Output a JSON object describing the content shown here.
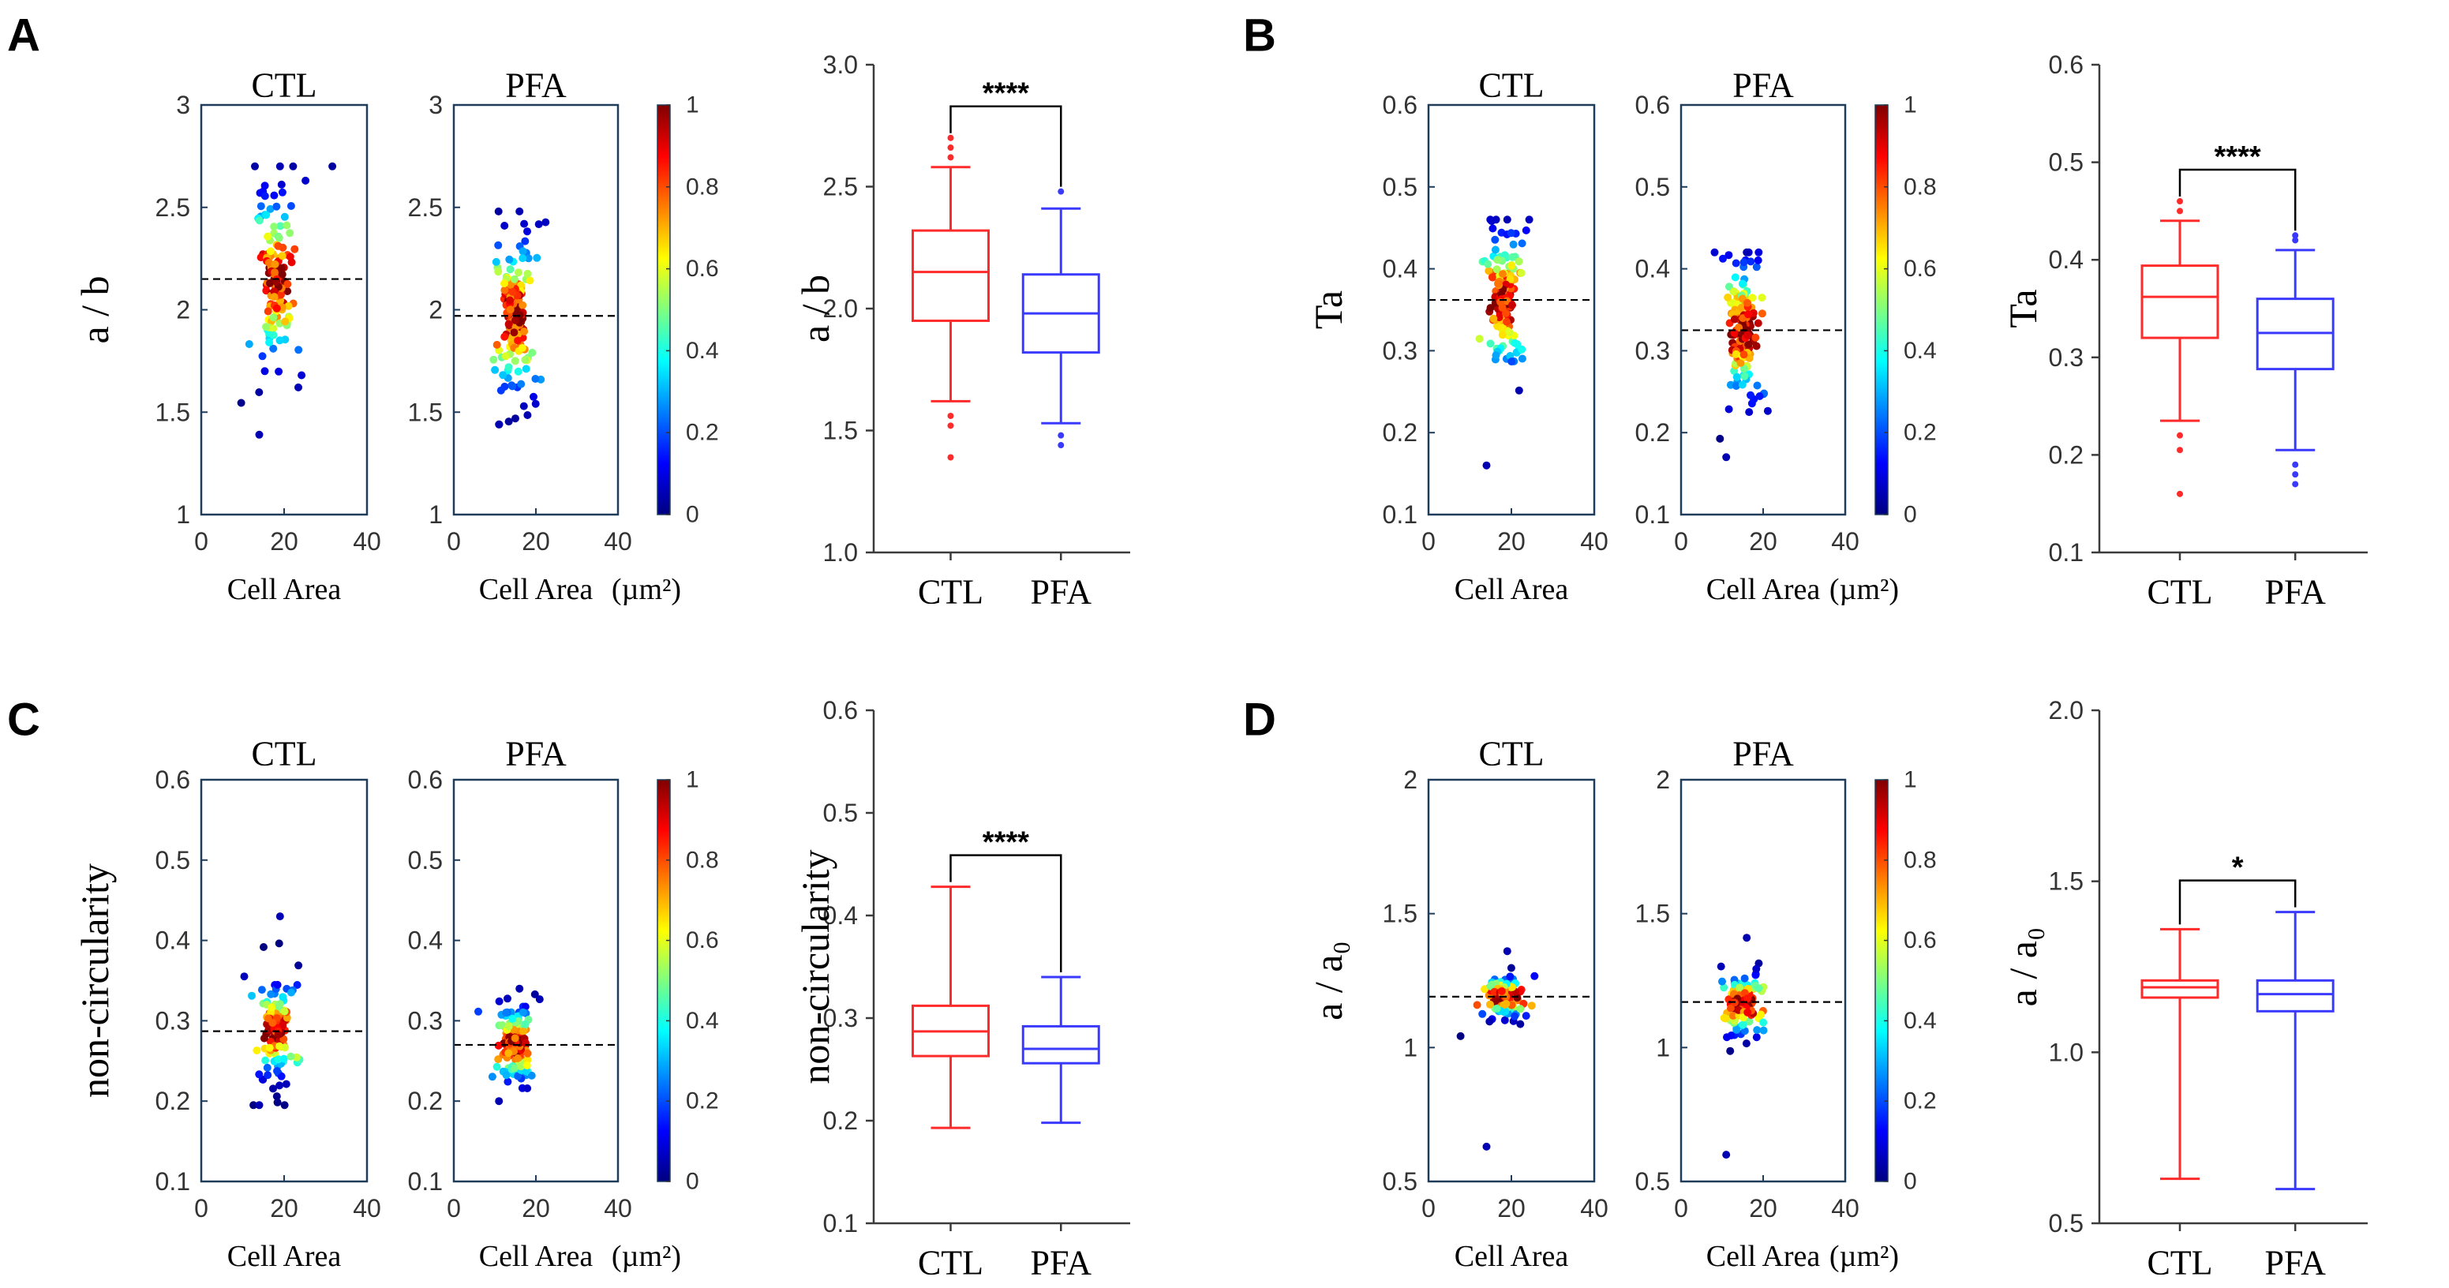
{
  "figure": {
    "colors": {
      "ctl": "#ff2a2a",
      "pfa": "#3a3aff",
      "axis": "#3b3b3b",
      "scatter_frame": "#1f3d5a",
      "median_line": "#000000"
    },
    "colormap": [
      "#00007f",
      "#0000ff",
      "#007fff",
      "#00ffff",
      "#7fff7f",
      "#ffff00",
      "#ff7f00",
      "#ff0000",
      "#7f0000"
    ]
  },
  "chart_data": [
    {
      "panel": "A",
      "panel_label": "A",
      "type": "scatter",
      "metric_label": "a / b",
      "ylim": [
        1,
        3
      ],
      "yticks": [
        1,
        1.5,
        2,
        2.5,
        3
      ],
      "xlim": [
        0,
        40
      ],
      "xticks": [
        0,
        20,
        40
      ],
      "xlabel": "Cell Area",
      "unit_label": "(µm²)",
      "colorbar": {
        "ticks": [
          "0",
          "0.2",
          "0.4",
          "0.6",
          "0.8",
          "1"
        ],
        "range": [
          0,
          1
        ]
      },
      "series": [
        {
          "name": "CTL",
          "title": "CTL",
          "center_x": 18,
          "center_y": 2.15,
          "sd_y": 0.22,
          "min": 1.39,
          "max": 2.7,
          "mean": 2.15
        },
        {
          "name": "PFA",
          "title": "PFA",
          "center_x": 15,
          "center_y": 1.97,
          "sd_y": 0.2,
          "min": 1.44,
          "max": 2.48,
          "mean": 1.97
        }
      ]
    },
    {
      "panel": "A",
      "type": "box",
      "ylabel": "a / b",
      "ylim": [
        1.0,
        3.0
      ],
      "ytick_labels": [
        "1.0",
        "1.5",
        "2.0",
        "2.5",
        "3.0"
      ],
      "categories": [
        "CTL",
        "PFA"
      ],
      "series": [
        {
          "name": "CTL",
          "whisker_low": 1.62,
          "q1": 1.95,
          "median": 2.15,
          "q3": 2.32,
          "whisker_high": 2.58,
          "outliers": [
            1.39,
            1.52,
            1.56,
            2.62,
            2.66,
            2.7
          ]
        },
        {
          "name": "PFA",
          "whisker_low": 1.53,
          "q1": 1.82,
          "median": 1.98,
          "q3": 2.14,
          "whisker_high": 2.41,
          "outliers": [
            1.44,
            1.48,
            2.48
          ]
        }
      ],
      "significance": "****"
    },
    {
      "panel": "B",
      "panel_label": "B",
      "type": "scatter",
      "metric_label": "Ta",
      "ylim": [
        0.1,
        0.6
      ],
      "yticks": [
        0.1,
        0.2,
        0.3,
        0.4,
        0.5,
        0.6
      ],
      "xlim": [
        0,
        40
      ],
      "xticks": [
        0,
        20,
        40
      ],
      "xlabel": "Cell Area",
      "unit_label": "(µm²)",
      "colorbar": {
        "ticks": [
          "0",
          "0.2",
          "0.4",
          "0.6",
          "0.8",
          "1"
        ],
        "range": [
          0,
          1
        ]
      },
      "series": [
        {
          "name": "CTL",
          "title": "CTL",
          "center_x": 18,
          "center_y": 0.36,
          "sd_y": 0.045,
          "min": 0.16,
          "max": 0.46,
          "mean": 0.362
        },
        {
          "name": "PFA",
          "title": "PFA",
          "center_x": 15,
          "center_y": 0.325,
          "sd_y": 0.045,
          "min": 0.17,
          "max": 0.42,
          "mean": 0.325
        }
      ]
    },
    {
      "panel": "B",
      "type": "box",
      "ylabel": "Ta",
      "ylim": [
        0.1,
        0.6
      ],
      "ytick_labels": [
        "0.1",
        "0.2",
        "0.3",
        "0.4",
        "0.5",
        "0.6"
      ],
      "categories": [
        "CTL",
        "PFA"
      ],
      "series": [
        {
          "name": "CTL",
          "whisker_low": 0.235,
          "q1": 0.32,
          "median": 0.362,
          "q3": 0.394,
          "whisker_high": 0.44,
          "outliers": [
            0.16,
            0.205,
            0.22,
            0.45,
            0.46
          ]
        },
        {
          "name": "PFA",
          "whisker_low": 0.205,
          "q1": 0.288,
          "median": 0.325,
          "q3": 0.36,
          "whisker_high": 0.41,
          "outliers": [
            0.17,
            0.18,
            0.19,
            0.42,
            0.425
          ]
        }
      ],
      "significance": "****"
    },
    {
      "panel": "C",
      "panel_label": "C",
      "type": "scatter",
      "metric_label": "non-circularity",
      "ylim": [
        0.1,
        0.6
      ],
      "yticks": [
        0.1,
        0.2,
        0.3,
        0.4,
        0.5,
        0.6
      ],
      "xlim": [
        0,
        40
      ],
      "xticks": [
        0,
        20,
        40
      ],
      "xlabel": "Cell Area",
      "unit_label": "(µm²)",
      "colorbar": {
        "ticks": [
          "0",
          "0.2",
          "0.4",
          "0.6",
          "0.8",
          "1"
        ],
        "range": [
          0,
          1
        ]
      },
      "series": [
        {
          "name": "CTL",
          "title": "CTL",
          "center_x": 18,
          "center_y": 0.288,
          "sd_y": 0.03,
          "min": 0.195,
          "max": 0.43,
          "mean": 0.287
        },
        {
          "name": "PFA",
          "title": "PFA",
          "center_x": 15,
          "center_y": 0.27,
          "sd_y": 0.025,
          "min": 0.2,
          "max": 0.34,
          "mean": 0.27
        }
      ]
    },
    {
      "panel": "C",
      "type": "box",
      "ylabel": "non-circularity",
      "ylim": [
        0.1,
        0.6
      ],
      "ytick_labels": [
        "0.1",
        "0.2",
        "0.3",
        "0.4",
        "0.5",
        "0.6"
      ],
      "categories": [
        "CTL",
        "PFA"
      ],
      "series": [
        {
          "name": "CTL",
          "whisker_low": 0.193,
          "q1": 0.263,
          "median": 0.287,
          "q3": 0.312,
          "whisker_high": 0.428,
          "outliers": []
        },
        {
          "name": "PFA",
          "whisker_low": 0.198,
          "q1": 0.256,
          "median": 0.27,
          "q3": 0.292,
          "whisker_high": 0.34,
          "outliers": []
        }
      ],
      "significance": "****"
    },
    {
      "panel": "D",
      "panel_label": "D",
      "type": "scatter",
      "metric_label": "a / a₀",
      "ylim": [
        0.5,
        2
      ],
      "yticks": [
        0.5,
        1,
        1.5,
        2
      ],
      "xlim": [
        0,
        40
      ],
      "xticks": [
        0,
        20,
        40
      ],
      "xlabel": "Cell Area",
      "unit_label": "(µm²)",
      "colorbar": {
        "ticks": [
          "0",
          "0.2",
          "0.4",
          "0.6",
          "0.8",
          "1"
        ],
        "range": [
          0,
          1
        ]
      },
      "series": [
        {
          "name": "CTL",
          "title": "CTL",
          "center_x": 18,
          "center_y": 1.19,
          "sd_y": 0.04,
          "min": 0.63,
          "max": 1.36,
          "mean": 1.19
        },
        {
          "name": "PFA",
          "title": "PFA",
          "center_x": 15,
          "center_y": 1.16,
          "sd_y": 0.06,
          "min": 0.6,
          "max": 1.41,
          "mean": 1.17
        }
      ]
    },
    {
      "panel": "D",
      "type": "box",
      "ylabel": "a / a₀",
      "ylim": [
        0.5,
        2.0
      ],
      "ytick_labels": [
        "0.5",
        "1.0",
        "1.5",
        "2.0"
      ],
      "categories": [
        "CTL",
        "PFA"
      ],
      "series": [
        {
          "name": "CTL",
          "whisker_low": 0.63,
          "q1": 1.16,
          "median": 1.19,
          "q3": 1.21,
          "whisker_high": 1.36,
          "outliers": []
        },
        {
          "name": "PFA",
          "whisker_low": 0.6,
          "q1": 1.12,
          "median": 1.17,
          "q3": 1.21,
          "whisker_high": 1.41,
          "outliers": []
        }
      ],
      "significance": "*"
    }
  ]
}
